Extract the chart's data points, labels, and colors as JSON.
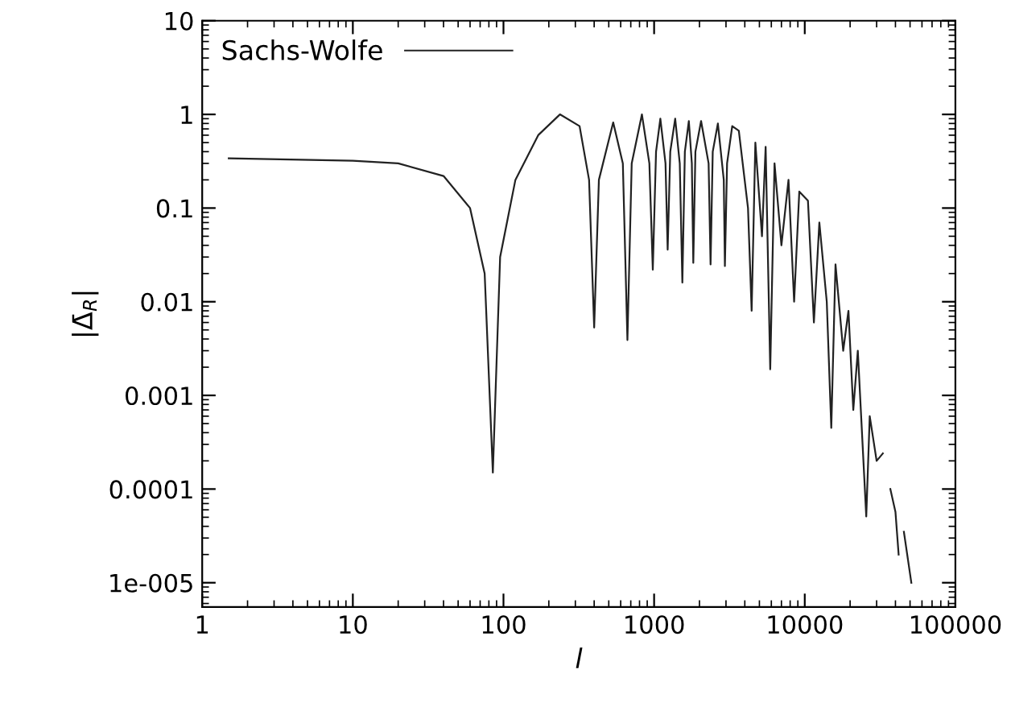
{
  "chart_data": {
    "type": "line",
    "xlabel": "l",
    "ylabel": "|Δ̄$_{R}$|",
    "log": "xy",
    "grid": false,
    "legend": "top left",
    "marker": "none",
    "line_style": "solid",
    "xlim": [
      1,
      100000
    ],
    "ylim": [
      5.5e-06,
      10
    ],
    "xticks": [
      1,
      10,
      100,
      1000,
      10000,
      {
        "value": 100000,
        "label": "100000"
      }
    ],
    "yticks": [
      {
        "value": 1e-05,
        "label": "1e-005"
      },
      0.0001,
      0.001,
      0.01,
      0.1,
      1,
      10
    ],
    "series": [
      {
        "name": "Sachs-Wolfe",
        "color": "#222222",
        "x": [
          1.5,
          10,
          20,
          40,
          60,
          75,
          85,
          95,
          120,
          170,
          237,
          320,
          370,
          400,
          430,
          535,
          620,
          665,
          710,
          830,
          930,
          980,
          1030,
          1100,
          1190,
          1230,
          1280,
          1380,
          1480,
          1540,
          1600,
          1700,
          1780,
          1820,
          1880,
          2050,
          2300,
          2370,
          2450,
          2650,
          2900,
          2950,
          3050,
          3300,
          3650,
          4200,
          4440,
          4700,
          5200,
          5500,
          5900,
          6300,
          7000,
          7800,
          8500,
          9200,
          10500,
          11500,
          12500,
          14000,
          15000,
          16000,
          18000,
          19500,
          21000,
          22500,
          25600,
          27000,
          30000,
          33000,
          35000,
          37000,
          40000,
          42000,
          44600,
          45500,
          51000
        ],
        "values": [
          0.34,
          0.32,
          0.3,
          0.22,
          0.1,
          0.02,
          0.00015,
          0.03,
          0.2,
          0.6,
          1.0,
          0.75,
          0.2,
          0.0053,
          0.2,
          0.82,
          0.3,
          0.0039,
          0.3,
          1.0,
          0.3,
          0.022,
          0.4,
          0.9,
          0.3,
          0.036,
          0.4,
          0.9,
          0.3,
          0.016,
          0.4,
          0.85,
          0.3,
          0.026,
          0.4,
          0.85,
          0.3,
          0.025,
          0.4,
          0.8,
          0.2,
          0.024,
          0.3,
          0.75,
          0.67,
          0.1,
          0.008,
          0.5,
          0.05,
          0.45,
          0.0019,
          0.3,
          0.04,
          0.2,
          0.01,
          0.15,
          0.12,
          0.006,
          0.07,
          0.01,
          0.00045,
          0.025,
          0.003,
          0.008,
          0.0007,
          0.003,
          5.1e-05,
          0.0006,
          0.0002,
          0.00024,
          null,
          0.0001,
          5.7e-05,
          2e-05,
          null,
          3.5e-05,
          1e-05
        ]
      }
    ]
  }
}
